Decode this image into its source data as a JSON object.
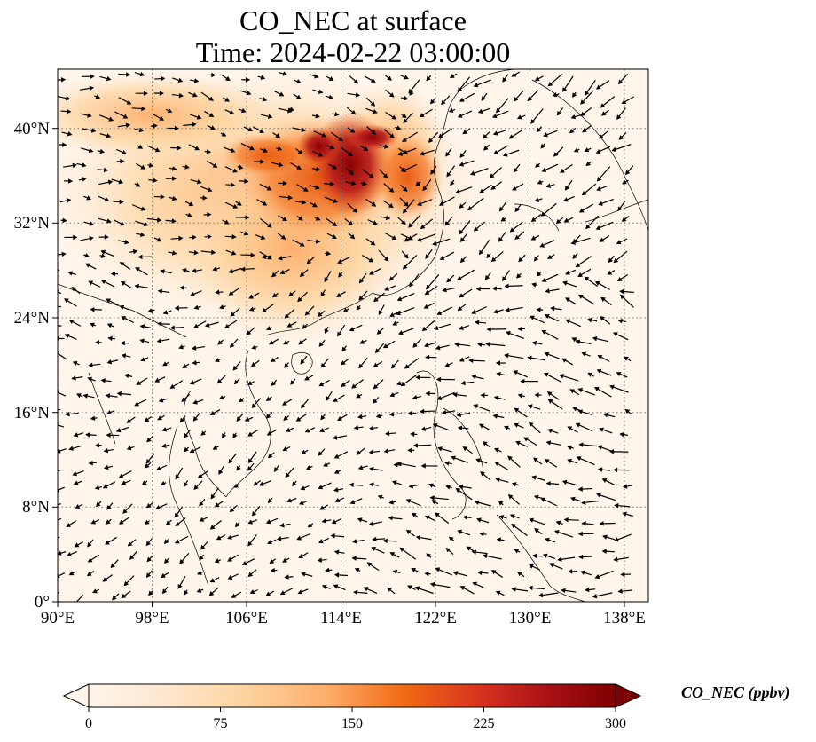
{
  "title_line1": "CO_NEC at surface",
  "title_line2": "Time: 2024-02-22 03:00:00",
  "map": {
    "extent": {
      "lon": [
        90,
        140
      ],
      "lat": [
        0,
        45
      ]
    },
    "lon_ticks": [
      "90°E",
      "98°E",
      "106°E",
      "114°E",
      "122°E",
      "130°E",
      "138°E"
    ],
    "lat_ticks": [
      "0°",
      "8°N",
      "16°N",
      "24°N",
      "32°N",
      "40°N"
    ],
    "gridlines": "dotted",
    "background_color": "#fff5eb",
    "plume_description_colors": [
      "#fee6ce",
      "#fdae6b",
      "#e6550d",
      "#a50f15",
      "#7f0000"
    ],
    "wind_vectors": "black arrows"
  },
  "colorbar": {
    "label": "CO_NEC (ppbv)",
    "ticks": [
      "0",
      "75",
      "150",
      "225",
      "300"
    ],
    "min": 0,
    "max": 300,
    "extend": "both",
    "colormap": "OrRd",
    "colors": [
      "#fff5eb",
      "#fdd49e",
      "#fdbb84",
      "#fc8d59",
      "#ef6548",
      "#d7301f",
      "#b30000",
      "#7f0000"
    ]
  }
}
